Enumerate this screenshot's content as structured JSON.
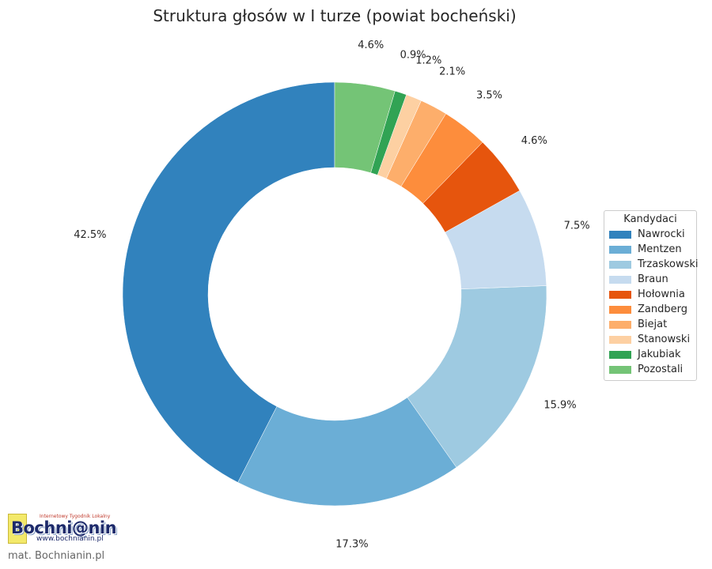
{
  "chart_data": {
    "type": "pie",
    "subtype": "donut",
    "title": "Struktura głosów w I turze (powiat bocheński)",
    "categories": [
      "Nawrocki",
      "Mentzen",
      "Trzaskowski",
      "Braun",
      "Hołownia",
      "Zandberg",
      "Biejat",
      "Stanowski",
      "Jakubiak",
      "Pozostali"
    ],
    "values": [
      42.5,
      17.3,
      15.9,
      7.5,
      4.6,
      3.5,
      2.1,
      1.2,
      0.9,
      4.6
    ],
    "labels": [
      "42.5%",
      "17.3%",
      "15.9%",
      "7.5%",
      "4.6%",
      "3.5%",
      "2.1%",
      "1.2%",
      "0.9%",
      "4.6%"
    ],
    "colors": [
      "#3182bd",
      "#6baed6",
      "#9ecae1",
      "#c6dbef",
      "#e6550d",
      "#fd8d3c",
      "#fdae6b",
      "#fdd0a2",
      "#31a354",
      "#74c476"
    ],
    "direction": "counterclockwise",
    "start": "top",
    "legend": {
      "title": "Kandydaci",
      "placement": "right"
    }
  },
  "watermark": {
    "logo_tagline": "Internetowy Tygodnik Lokalny",
    "logo_name": "Bochni@nin",
    "logo_url": "www.bochnianin.pl",
    "credit": "mat. Bochnianin.pl"
  }
}
